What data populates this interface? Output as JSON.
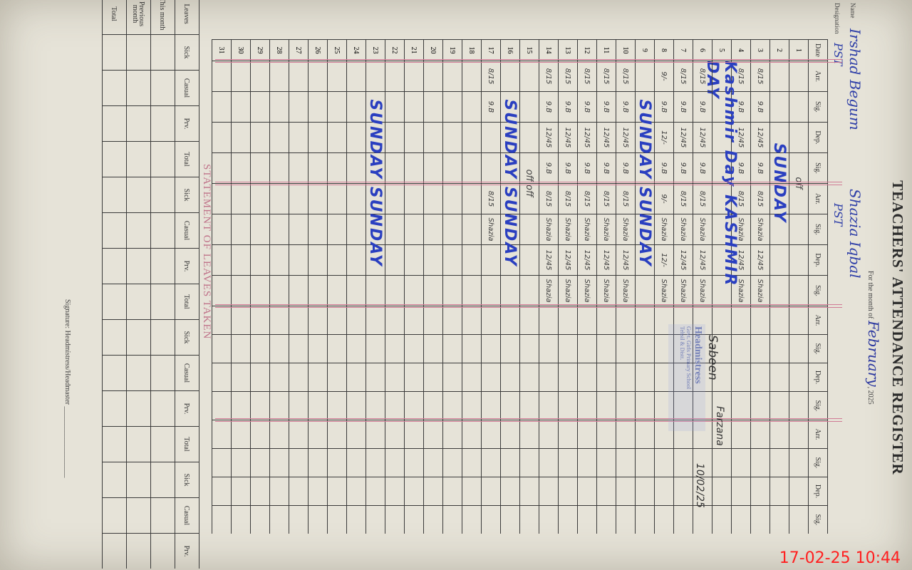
{
  "register": {
    "title": "TEACHERS' ATTENDANCE REGISTER",
    "month_label": "For the month of",
    "month_value": "February",
    "year": "2025",
    "name_label": "Name",
    "designation_label": "Designation",
    "teachers": [
      {
        "name": "Irshad Begum",
        "designation": "PST"
      },
      {
        "name": "Shazia Iqbal",
        "designation": "PST"
      }
    ],
    "columns": [
      "Date",
      "Arr.",
      "Sig.",
      "Dep.",
      "Sig.",
      "Arr.",
      "Sig.",
      "Dep.",
      "Sig.",
      "Arr.",
      "Sig.",
      "Dep.",
      "Sig.",
      "Arr.",
      "Sig.",
      "Dep.",
      "Sig."
    ],
    "rows": [
      {
        "date": "1",
        "span": "off",
        "type": "off"
      },
      {
        "date": "2",
        "span": "SUNDAY",
        "type": "holiday"
      },
      {
        "date": "3",
        "cells": [
          "8/15",
          "9.B",
          "12/45",
          "9.B",
          "8/15",
          "Shazia",
          "12/45",
          "Shazia"
        ]
      },
      {
        "date": "4",
        "cells": [
          "8/15",
          "9.B",
          "12/45",
          "9.B",
          "8/15",
          "Shazia",
          "12/45",
          "Shazia"
        ]
      },
      {
        "date": "5",
        "span": "Kashmir Day  KASHMIR DAY",
        "type": "holiday"
      },
      {
        "date": "6",
        "cells": [
          "8/15",
          "9.B",
          "12/45",
          "9.B",
          "8/15",
          "Shazia",
          "12/45",
          "Shazia"
        ]
      },
      {
        "date": "7",
        "cells": [
          "8/15",
          "9.B",
          "12/45",
          "9.B",
          "8/15",
          "Shazia",
          "12/45",
          "Shazia"
        ]
      },
      {
        "date": "8",
        "cells": [
          "9/-",
          "9.B",
          "12/-",
          "9.B",
          "9/-",
          "Shazia",
          "12/-",
          "Shazia"
        ]
      },
      {
        "date": "9",
        "span": "SUNDAY    SUNDAY",
        "type": "holiday"
      },
      {
        "date": "10",
        "cells": [
          "8/15",
          "9.B",
          "12/45",
          "9.B",
          "8/15",
          "Shazia",
          "12/45",
          "Shazia"
        ]
      },
      {
        "date": "11",
        "cells": [
          "8/15",
          "9.B",
          "12/45",
          "9.B",
          "8/15",
          "Shazia",
          "12/45",
          "Shazia"
        ]
      },
      {
        "date": "12",
        "cells": [
          "8/15",
          "9.B",
          "12/45",
          "9.B",
          "8/15",
          "Shazia",
          "12/45",
          "Shazia"
        ]
      },
      {
        "date": "13",
        "cells": [
          "8/15",
          "9.B",
          "12/45",
          "9.B",
          "8/15",
          "Shazia",
          "12/45",
          "Shazia"
        ]
      },
      {
        "date": "14",
        "cells": [
          "8/15",
          "9.B",
          "12/45",
          "9.B",
          "8/15",
          "Shazia",
          "12/45",
          "Shazia"
        ]
      },
      {
        "date": "15",
        "span": "off         off",
        "type": "off"
      },
      {
        "date": "16",
        "span": "SUNDAY    SUNDAY",
        "type": "holiday"
      },
      {
        "date": "17",
        "cells": [
          "8/15",
          "9.B",
          "",
          "",
          "8/15",
          "Shazia",
          "",
          ""
        ]
      },
      {
        "date": "18"
      },
      {
        "date": "19"
      },
      {
        "date": "20"
      },
      {
        "date": "21"
      },
      {
        "date": "22"
      },
      {
        "date": "23",
        "span": "SUNDAY    SUNDAY",
        "type": "holiday"
      },
      {
        "date": "24"
      },
      {
        "date": "25"
      },
      {
        "date": "26"
      },
      {
        "date": "27"
      },
      {
        "date": "28"
      },
      {
        "date": "29"
      },
      {
        "date": "30"
      },
      {
        "date": "31"
      }
    ],
    "head_signature": "Sabeen",
    "head_signature_2": "Farzana",
    "stamp": {
      "line1": "Headmistress",
      "line2": "Govt. Girls Primary School",
      "line3": "Tehsil & Distt."
    },
    "sign_date": "10/02/25"
  },
  "leaves": {
    "title": "STATEMENT OF LEAVES TAKEN",
    "row_labels": [
      "Leaves",
      "This month",
      "Previous month",
      "Total"
    ],
    "columns": [
      "Sick",
      "Casual",
      "Prv.",
      "Total",
      "Sick",
      "Casual",
      "Prv.",
      "Total",
      "Sick",
      "Casual",
      "Prv.",
      "Total",
      "Sick",
      "Casual",
      "Prv."
    ]
  },
  "signature_label": "Signature: Headmistress/Headmaster",
  "timestamp": "17-02-25  10:44",
  "colors": {
    "ink_blue": "#2a3fc0",
    "rule_pink": "#d07a95",
    "timestamp_red": "#ff2020"
  }
}
